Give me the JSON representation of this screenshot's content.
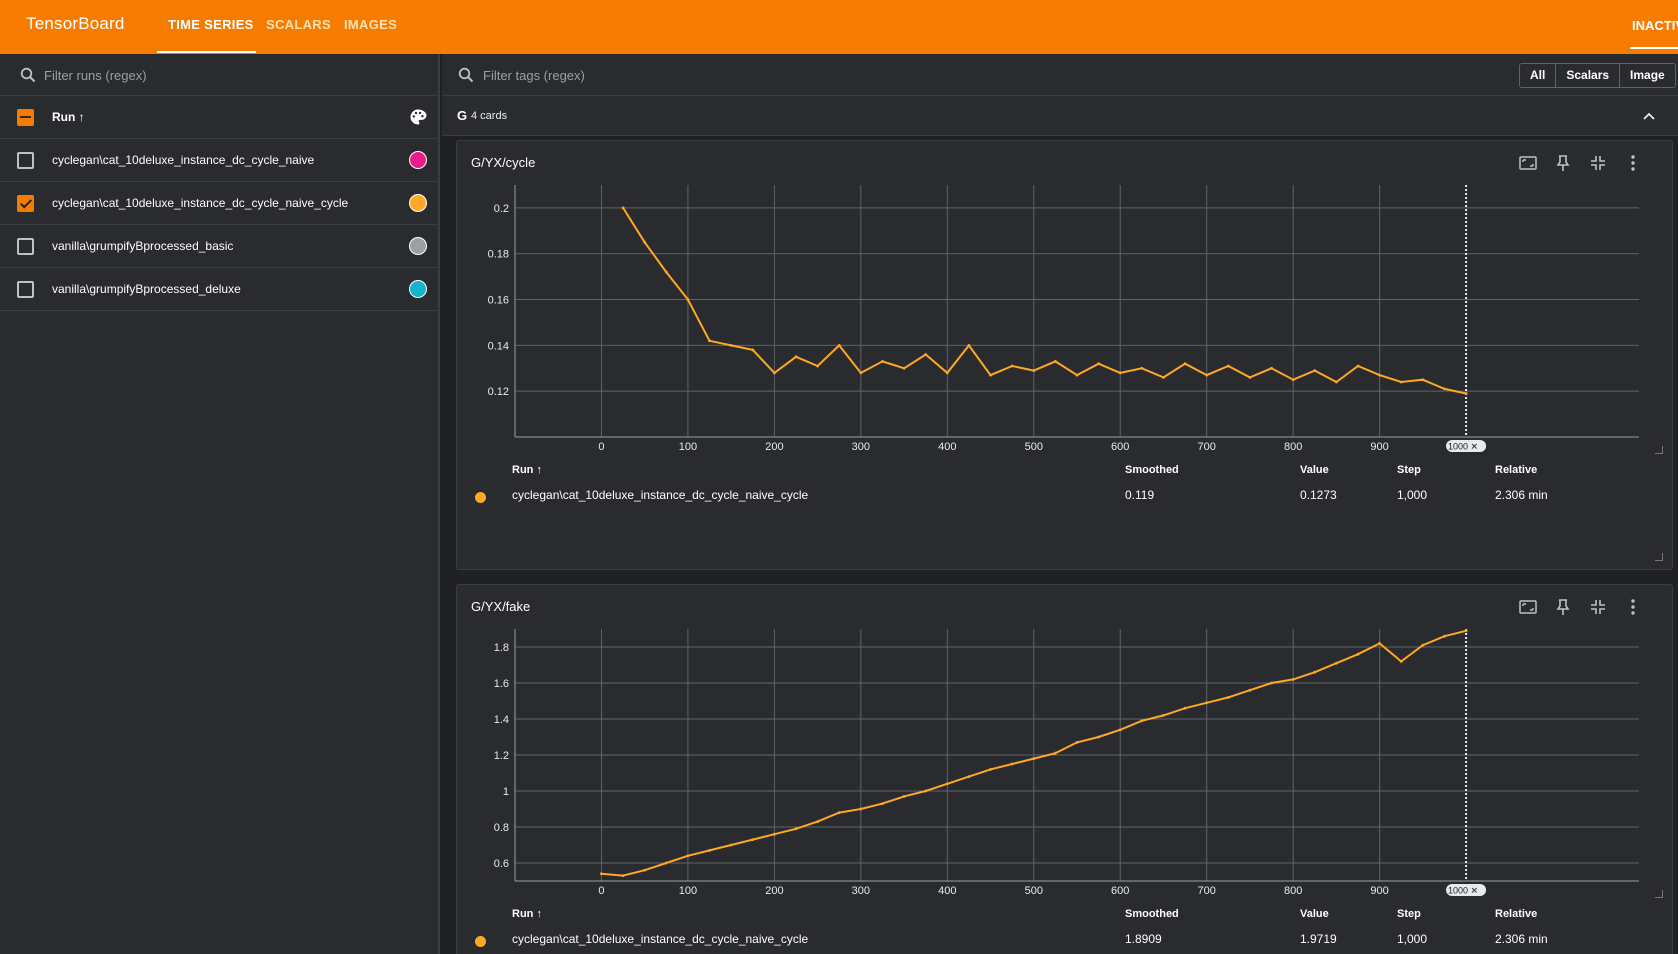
{
  "app": {
    "title": "TensorBoard",
    "tabs": [
      {
        "label": "TIME SERIES",
        "active": true
      },
      {
        "label": "SCALARS",
        "active": false
      },
      {
        "label": "IMAGES",
        "active": false
      }
    ],
    "right_tab": "INACTIV",
    "accent_color": "#f57c00"
  },
  "sidebar": {
    "filter_placeholder": "Filter runs (regex)",
    "header_label": "Run ↑",
    "runs": [
      {
        "label": "cyclegan\\cat_10deluxe_instance_dc_cycle_naive",
        "checked": false,
        "color": "#e91e8c"
      },
      {
        "label": "cyclegan\\cat_10deluxe_instance_dc_cycle_naive_cycle",
        "checked": true,
        "color": "#ffa726"
      },
      {
        "label": "vanilla\\grumpifyBprocessed_basic",
        "checked": false,
        "color": "#9aa0a6"
      },
      {
        "label": "vanilla\\grumpifyBprocessed_deluxe",
        "checked": false,
        "color": "#12b5cb"
      }
    ]
  },
  "main": {
    "tag_filter_placeholder": "Filter tags (regex)",
    "type_buttons": [
      "All",
      "Scalars",
      "Image"
    ],
    "group": {
      "name": "G",
      "count": "4 cards"
    },
    "table_headers": {
      "run": "Run ↑",
      "smoothed": "Smoothed",
      "value": "Value",
      "step": "Step",
      "relative": "Relative"
    }
  },
  "cards": [
    {
      "title": "G/YX/cycle",
      "row": {
        "run": "cyclegan\\cat_10deluxe_instance_dc_cycle_naive_cycle",
        "smoothed": "0.119",
        "value": "0.1273",
        "step": "1,000",
        "relative": "2.306 min"
      }
    },
    {
      "title": "G/YX/fake",
      "row": {
        "run": "cyclegan\\cat_10deluxe_instance_dc_cycle_naive_cycle",
        "smoothed": "1.8909",
        "value": "1.9719",
        "step": "1,000",
        "relative": "2.306 min"
      }
    }
  ],
  "chart_data": [
    {
      "type": "line",
      "title": "G/YX/cycle",
      "x_ticks": [
        0,
        100,
        200,
        300,
        400,
        500,
        600,
        700,
        800,
        900
      ],
      "y_ticks": [
        "0.12",
        "0.14",
        "0.16",
        "0.18",
        "0.2"
      ],
      "xlim": [
        -100,
        1200
      ],
      "ylim": [
        0.1,
        0.21
      ],
      "step_marker": "1000",
      "grid": true,
      "series": [
        {
          "color": "#ffa726",
          "x": [
            25,
            50,
            75,
            100,
            125,
            150,
            175,
            200,
            225,
            250,
            275,
            300,
            325,
            350,
            375,
            400,
            425,
            450,
            475,
            500,
            525,
            550,
            575,
            600,
            625,
            650,
            675,
            700,
            725,
            750,
            775,
            800,
            825,
            850,
            875,
            900,
            925,
            950,
            975,
            1000
          ],
          "y": [
            0.2,
            0.185,
            0.172,
            0.16,
            0.142,
            0.14,
            0.138,
            0.128,
            0.135,
            0.131,
            0.14,
            0.128,
            0.133,
            0.13,
            0.136,
            0.128,
            0.14,
            0.127,
            0.131,
            0.129,
            0.133,
            0.127,
            0.132,
            0.128,
            0.13,
            0.126,
            0.132,
            0.127,
            0.131,
            0.126,
            0.13,
            0.125,
            0.129,
            0.124,
            0.131,
            0.127,
            0.124,
            0.125,
            0.121,
            0.119
          ]
        }
      ]
    },
    {
      "type": "line",
      "title": "G/YX/fake",
      "x_ticks": [
        0,
        100,
        200,
        300,
        400,
        500,
        600,
        700,
        800,
        900
      ],
      "y_ticks": [
        "0.6",
        "0.8",
        "1",
        "1.2",
        "1.4",
        "1.6",
        "1.8"
      ],
      "xlim": [
        -100,
        1200
      ],
      "ylim": [
        0.5,
        1.9
      ],
      "step_marker": "1000",
      "grid": true,
      "series": [
        {
          "color": "#ffa726",
          "x": [
            0,
            25,
            50,
            75,
            100,
            125,
            150,
            175,
            200,
            225,
            250,
            275,
            300,
            325,
            350,
            375,
            400,
            425,
            450,
            475,
            500,
            525,
            550,
            575,
            600,
            625,
            650,
            675,
            700,
            725,
            750,
            775,
            800,
            825,
            850,
            875,
            900,
            925,
            950,
            975,
            1000
          ],
          "y": [
            0.54,
            0.53,
            0.56,
            0.6,
            0.64,
            0.67,
            0.7,
            0.73,
            0.76,
            0.79,
            0.83,
            0.88,
            0.9,
            0.93,
            0.97,
            1.0,
            1.04,
            1.08,
            1.12,
            1.15,
            1.18,
            1.21,
            1.27,
            1.3,
            1.34,
            1.39,
            1.42,
            1.46,
            1.49,
            1.52,
            1.56,
            1.6,
            1.62,
            1.66,
            1.71,
            1.76,
            1.82,
            1.72,
            1.81,
            1.86,
            1.89
          ]
        }
      ]
    }
  ]
}
